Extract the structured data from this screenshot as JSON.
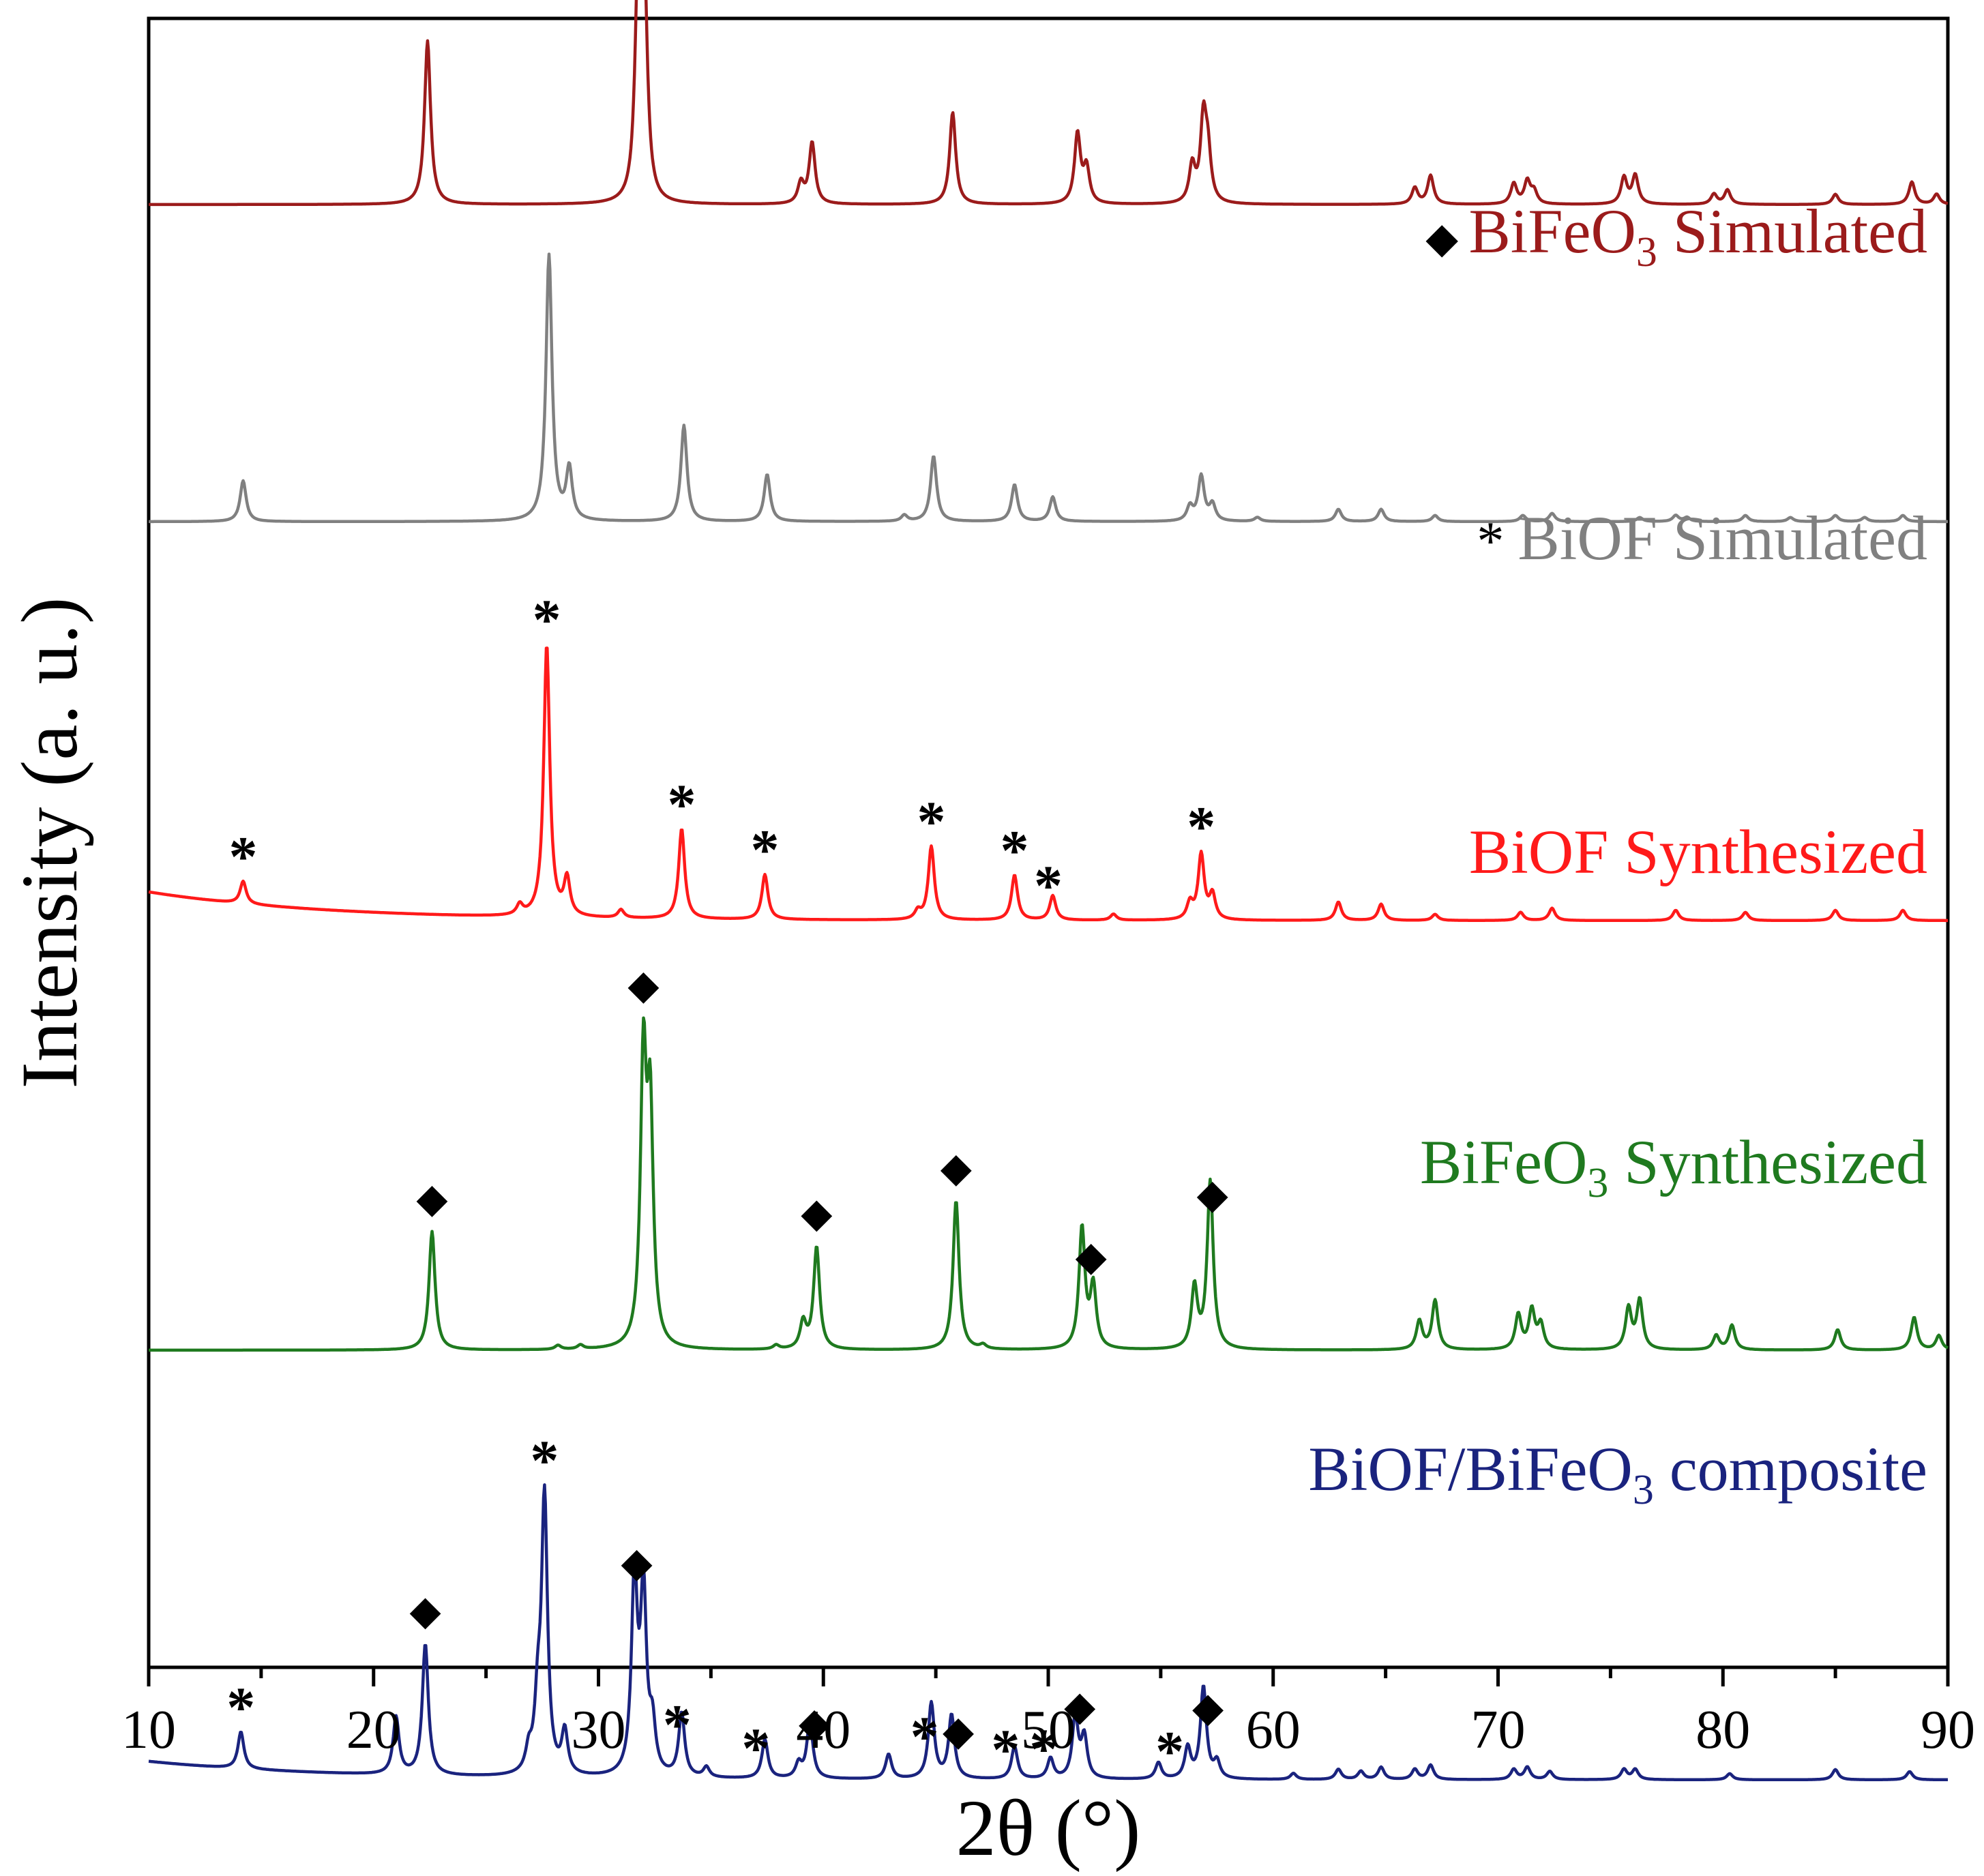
{
  "chart_data": {
    "type": "line",
    "title": "",
    "xlabel": "2θ (°)",
    "ylabel": "Intensity (a. u.)",
    "xlim": [
      10,
      90
    ],
    "xticks": [
      10,
      20,
      30,
      40,
      50,
      60,
      70,
      80,
      90
    ],
    "xtick_labels": [
      "10",
      "20",
      "30",
      "40",
      "50",
      "60",
      "70",
      "80",
      "90"
    ],
    "y_tick_labels": "none",
    "grid": false,
    "marker_legend": [
      {
        "symbol": "◆",
        "phase": "BiFeO3"
      },
      {
        "symbol": "*",
        "phase": "BiOF"
      }
    ],
    "series": [
      {
        "name": "BiFeO3 Simulated",
        "label_main": "BiFeO",
        "label_sub": "3",
        "label_rest": " Simulated",
        "label_marker": "◆",
        "color": "#9b1b1b",
        "offset": 4.0,
        "background": 0.0,
        "peaks": [
          {
            "x": 22.4,
            "h": 0.8
          },
          {
            "x": 31.75,
            "h": 1.0
          },
          {
            "x": 32.05,
            "h": 0.98
          },
          {
            "x": 39.0,
            "h": 0.1
          },
          {
            "x": 39.5,
            "h": 0.3
          },
          {
            "x": 45.75,
            "h": 0.45
          },
          {
            "x": 51.3,
            "h": 0.34
          },
          {
            "x": 51.7,
            "h": 0.17
          },
          {
            "x": 56.4,
            "h": 0.18
          },
          {
            "x": 56.9,
            "h": 0.4
          },
          {
            "x": 57.1,
            "h": 0.22
          },
          {
            "x": 66.3,
            "h": 0.08
          },
          {
            "x": 67.0,
            "h": 0.14
          },
          {
            "x": 70.7,
            "h": 0.1
          },
          {
            "x": 71.3,
            "h": 0.11
          },
          {
            "x": 71.6,
            "h": 0.06
          },
          {
            "x": 75.6,
            "h": 0.13
          },
          {
            "x": 76.1,
            "h": 0.14
          },
          {
            "x": 79.6,
            "h": 0.05
          },
          {
            "x": 80.2,
            "h": 0.07
          },
          {
            "x": 85.0,
            "h": 0.05
          },
          {
            "x": 88.4,
            "h": 0.11
          },
          {
            "x": 89.5,
            "h": 0.05
          }
        ],
        "annotations": []
      },
      {
        "name": "BiOF Simulated",
        "label_main": "BiOF",
        "label_sub": "",
        "label_rest": " Simulated",
        "label_marker": "*",
        "color": "#808080",
        "offset": 2.45,
        "background": 0.0,
        "peaks": [
          {
            "x": 14.2,
            "h": 0.2
          },
          {
            "x": 27.8,
            "h": 1.3
          },
          {
            "x": 28.7,
            "h": 0.25
          },
          {
            "x": 33.8,
            "h": 0.47
          },
          {
            "x": 37.5,
            "h": 0.23
          },
          {
            "x": 43.6,
            "h": 0.03
          },
          {
            "x": 44.9,
            "h": 0.32
          },
          {
            "x": 48.5,
            "h": 0.18
          },
          {
            "x": 50.2,
            "h": 0.12
          },
          {
            "x": 56.3,
            "h": 0.07
          },
          {
            "x": 56.8,
            "h": 0.22
          },
          {
            "x": 57.3,
            "h": 0.08
          },
          {
            "x": 59.3,
            "h": 0.02
          },
          {
            "x": 62.9,
            "h": 0.06
          },
          {
            "x": 64.8,
            "h": 0.06
          },
          {
            "x": 67.2,
            "h": 0.03
          },
          {
            "x": 71.1,
            "h": 0.03
          },
          {
            "x": 72.4,
            "h": 0.04
          },
          {
            "x": 76.3,
            "h": 0.02
          },
          {
            "x": 77.9,
            "h": 0.03
          },
          {
            "x": 78.4,
            "h": 0.02
          },
          {
            "x": 81.0,
            "h": 0.03
          },
          {
            "x": 83.0,
            "h": 0.02
          },
          {
            "x": 85.0,
            "h": 0.03
          },
          {
            "x": 86.3,
            "h": 0.02
          },
          {
            "x": 88.0,
            "h": 0.03
          }
        ],
        "annotations": []
      },
      {
        "name": "BiOF Synthesized",
        "label_main": "BiOF",
        "label_sub": "",
        "label_rest": " Synthesized",
        "label_marker": "",
        "color": "#ff1a1a",
        "offset": 0.5,
        "background": 0.14,
        "peaks": [
          {
            "x": 14.2,
            "h": 0.11
          },
          {
            "x": 26.5,
            "h": 0.05
          },
          {
            "x": 27.7,
            "h": 1.33
          },
          {
            "x": 28.6,
            "h": 0.18
          },
          {
            "x": 31.0,
            "h": 0.04
          },
          {
            "x": 33.7,
            "h": 0.44
          },
          {
            "x": 37.4,
            "h": 0.22
          },
          {
            "x": 44.2,
            "h": 0.04
          },
          {
            "x": 44.8,
            "h": 0.36
          },
          {
            "x": 48.5,
            "h": 0.22
          },
          {
            "x": 50.2,
            "h": 0.12
          },
          {
            "x": 52.9,
            "h": 0.03
          },
          {
            "x": 56.3,
            "h": 0.08
          },
          {
            "x": 56.8,
            "h": 0.32
          },
          {
            "x": 57.3,
            "h": 0.12
          },
          {
            "x": 62.9,
            "h": 0.09
          },
          {
            "x": 64.8,
            "h": 0.08
          },
          {
            "x": 67.2,
            "h": 0.03
          },
          {
            "x": 71.0,
            "h": 0.04
          },
          {
            "x": 72.4,
            "h": 0.06
          },
          {
            "x": 77.9,
            "h": 0.05
          },
          {
            "x": 81.0,
            "h": 0.04
          },
          {
            "x": 85.0,
            "h": 0.05
          },
          {
            "x": 88.0,
            "h": 0.05
          }
        ],
        "annotations": [
          {
            "x": 14.2,
            "symbol": "*"
          },
          {
            "x": 27.7,
            "symbol": "*"
          },
          {
            "x": 33.7,
            "symbol": "*"
          },
          {
            "x": 37.4,
            "symbol": "*"
          },
          {
            "x": 44.8,
            "symbol": "*"
          },
          {
            "x": 48.5,
            "symbol": "*"
          },
          {
            "x": 50.0,
            "symbol": "*"
          },
          {
            "x": 56.8,
            "symbol": "*"
          }
        ]
      },
      {
        "name": "BiFeO3 Synthesized",
        "label_main": "BiFeO",
        "label_sub": "3",
        "label_rest": " Synthesized",
        "label_marker": "",
        "color": "#1f7a1f",
        "offset": -1.6,
        "background": 0.0,
        "peaks": [
          {
            "x": 22.6,
            "h": 0.58
          },
          {
            "x": 28.2,
            "h": 0.02
          },
          {
            "x": 29.2,
            "h": 0.02
          },
          {
            "x": 32.0,
            "h": 1.38
          },
          {
            "x": 32.3,
            "h": 1.1
          },
          {
            "x": 37.9,
            "h": 0.02
          },
          {
            "x": 39.1,
            "h": 0.13
          },
          {
            "x": 39.7,
            "h": 0.5
          },
          {
            "x": 45.9,
            "h": 0.73
          },
          {
            "x": 47.1,
            "h": 0.02
          },
          {
            "x": 51.5,
            "h": 0.59
          },
          {
            "x": 52.0,
            "h": 0.3
          },
          {
            "x": 56.5,
            "h": 0.3
          },
          {
            "x": 57.2,
            "h": 0.82
          },
          {
            "x": 66.5,
            "h": 0.14
          },
          {
            "x": 67.2,
            "h": 0.24
          },
          {
            "x": 70.9,
            "h": 0.17
          },
          {
            "x": 71.5,
            "h": 0.19
          },
          {
            "x": 71.9,
            "h": 0.12
          },
          {
            "x": 75.8,
            "h": 0.2
          },
          {
            "x": 76.3,
            "h": 0.24
          },
          {
            "x": 79.7,
            "h": 0.07
          },
          {
            "x": 80.4,
            "h": 0.12
          },
          {
            "x": 85.1,
            "h": 0.1
          },
          {
            "x": 88.5,
            "h": 0.16
          },
          {
            "x": 89.6,
            "h": 0.07
          }
        ],
        "annotations": [
          {
            "x": 22.6,
            "symbol": "◆"
          },
          {
            "x": 32.0,
            "symbol": "◆"
          },
          {
            "x": 39.7,
            "symbol": "◆"
          },
          {
            "x": 45.9,
            "symbol": "◆"
          },
          {
            "x": 51.9,
            "symbol": "◆"
          },
          {
            "x": 57.3,
            "symbol": "◆"
          }
        ]
      },
      {
        "name": "BiOF/BiFeO3 composite",
        "label_main": "BiOF/BiFeO",
        "label_sub": "3",
        "label_rest": " composite",
        "label_marker": "",
        "color": "#1a237e",
        "offset": -3.7,
        "background": 0.09,
        "peaks": [
          {
            "x": 14.1,
            "h": 0.18
          },
          {
            "x": 21.0,
            "h": 0.28
          },
          {
            "x": 22.3,
            "h": 0.64
          },
          {
            "x": 26.9,
            "h": 0.1
          },
          {
            "x": 27.3,
            "h": 0.3
          },
          {
            "x": 27.6,
            "h": 1.35
          },
          {
            "x": 28.5,
            "h": 0.21
          },
          {
            "x": 31.6,
            "h": 0.95
          },
          {
            "x": 32.0,
            "h": 0.88
          },
          {
            "x": 32.4,
            "h": 0.22
          },
          {
            "x": 33.7,
            "h": 0.31
          },
          {
            "x": 34.8,
            "h": 0.05
          },
          {
            "x": 37.4,
            "h": 0.19
          },
          {
            "x": 38.9,
            "h": 0.07
          },
          {
            "x": 39.4,
            "h": 0.28
          },
          {
            "x": 42.9,
            "h": 0.12
          },
          {
            "x": 44.8,
            "h": 0.37
          },
          {
            "x": 45.7,
            "h": 0.31
          },
          {
            "x": 48.5,
            "h": 0.16
          },
          {
            "x": 50.1,
            "h": 0.1
          },
          {
            "x": 51.2,
            "h": 0.3
          },
          {
            "x": 51.6,
            "h": 0.2
          },
          {
            "x": 54.9,
            "h": 0.08
          },
          {
            "x": 56.2,
            "h": 0.15
          },
          {
            "x": 56.9,
            "h": 0.45
          },
          {
            "x": 57.5,
            "h": 0.08
          },
          {
            "x": 60.9,
            "h": 0.03
          },
          {
            "x": 62.9,
            "h": 0.05
          },
          {
            "x": 63.9,
            "h": 0.04
          },
          {
            "x": 64.8,
            "h": 0.06
          },
          {
            "x": 66.3,
            "h": 0.05
          },
          {
            "x": 67.0,
            "h": 0.07
          },
          {
            "x": 70.7,
            "h": 0.05
          },
          {
            "x": 71.3,
            "h": 0.06
          },
          {
            "x": 72.3,
            "h": 0.04
          },
          {
            "x": 75.6,
            "h": 0.05
          },
          {
            "x": 76.1,
            "h": 0.05
          },
          {
            "x": 80.3,
            "h": 0.03
          },
          {
            "x": 85.0,
            "h": 0.05
          },
          {
            "x": 88.3,
            "h": 0.04
          }
        ],
        "annotations": [
          {
            "x": 14.1,
            "symbol": "*"
          },
          {
            "x": 22.3,
            "symbol": "◆"
          },
          {
            "x": 27.6,
            "symbol": "*"
          },
          {
            "x": 31.7,
            "symbol": "◆"
          },
          {
            "x": 33.5,
            "symbol": "*"
          },
          {
            "x": 37.0,
            "symbol": "*"
          },
          {
            "x": 39.6,
            "symbol": "◆"
          },
          {
            "x": 44.5,
            "symbol": "*"
          },
          {
            "x": 46.0,
            "symbol": "◆"
          },
          {
            "x": 48.1,
            "symbol": "*"
          },
          {
            "x": 49.8,
            "symbol": "*"
          },
          {
            "x": 51.4,
            "symbol": "◆"
          },
          {
            "x": 55.4,
            "symbol": "*"
          },
          {
            "x": 57.1,
            "symbol": "◆"
          }
        ]
      }
    ]
  }
}
